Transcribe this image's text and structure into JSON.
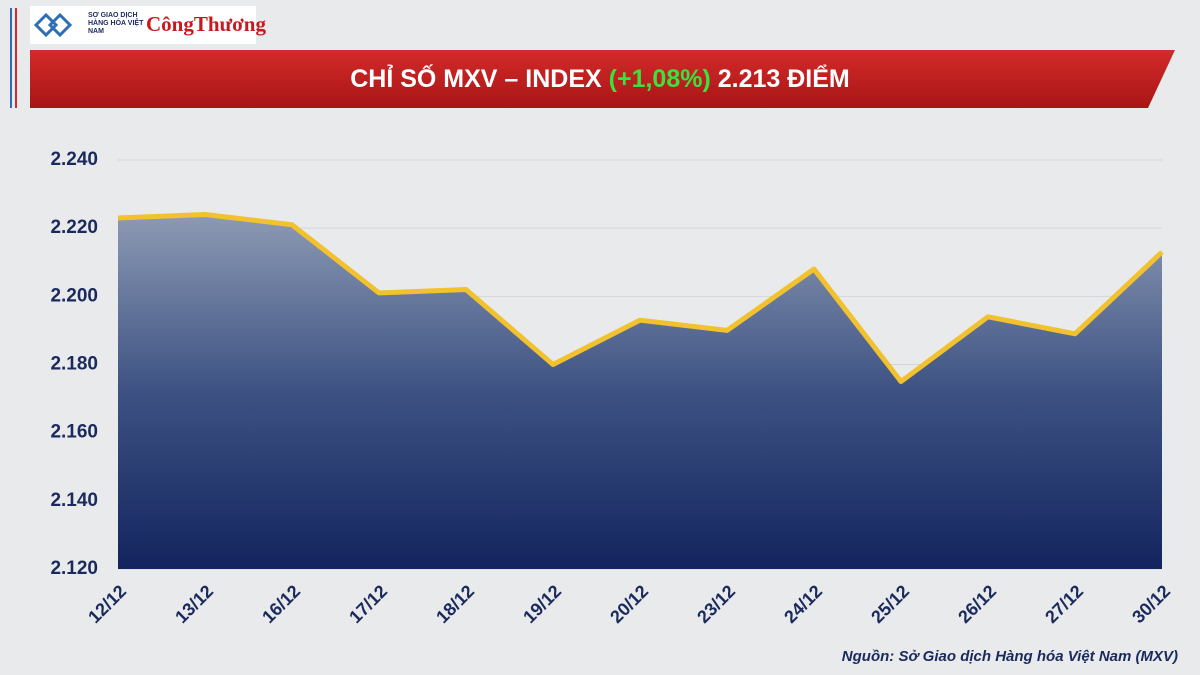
{
  "logos": {
    "exchange": "SỞ GIAO DỊCH HÀNG HÓA VIỆT NAM",
    "paper": "CôngThương"
  },
  "chart_data": {
    "type": "area-line",
    "title": {
      "main": "CHỈ SỐ MXV – INDEX",
      "change": "(+1,08%)",
      "level": "2.213 ĐIỂM"
    },
    "source": "Nguồn: Sở Giao dịch Hàng hóa Việt Nam (MXV)",
    "categories": [
      "12/12",
      "13/12",
      "16/12",
      "17/12",
      "18/12",
      "19/12",
      "20/12",
      "23/12",
      "24/12",
      "25/12",
      "26/12",
      "27/12",
      "30/12"
    ],
    "values": [
      2223,
      2224,
      2221,
      2201,
      2202,
      2180,
      2193,
      2190,
      2208,
      2175,
      2194,
      2189,
      2213
    ],
    "color": "#f2c12e",
    "ylim": [
      2120,
      2240
    ],
    "yticks": [
      {
        "value": 2120,
        "label": "2.120"
      },
      {
        "value": 2140,
        "label": "2.140"
      },
      {
        "value": 2160,
        "label": "2.160"
      },
      {
        "value": 2180,
        "label": "2.180"
      },
      {
        "value": 2200,
        "label": "2.200"
      },
      {
        "value": 2220,
        "label": "2.220"
      },
      {
        "value": 2240,
        "label": "2.240"
      }
    ],
    "grid": true
  }
}
